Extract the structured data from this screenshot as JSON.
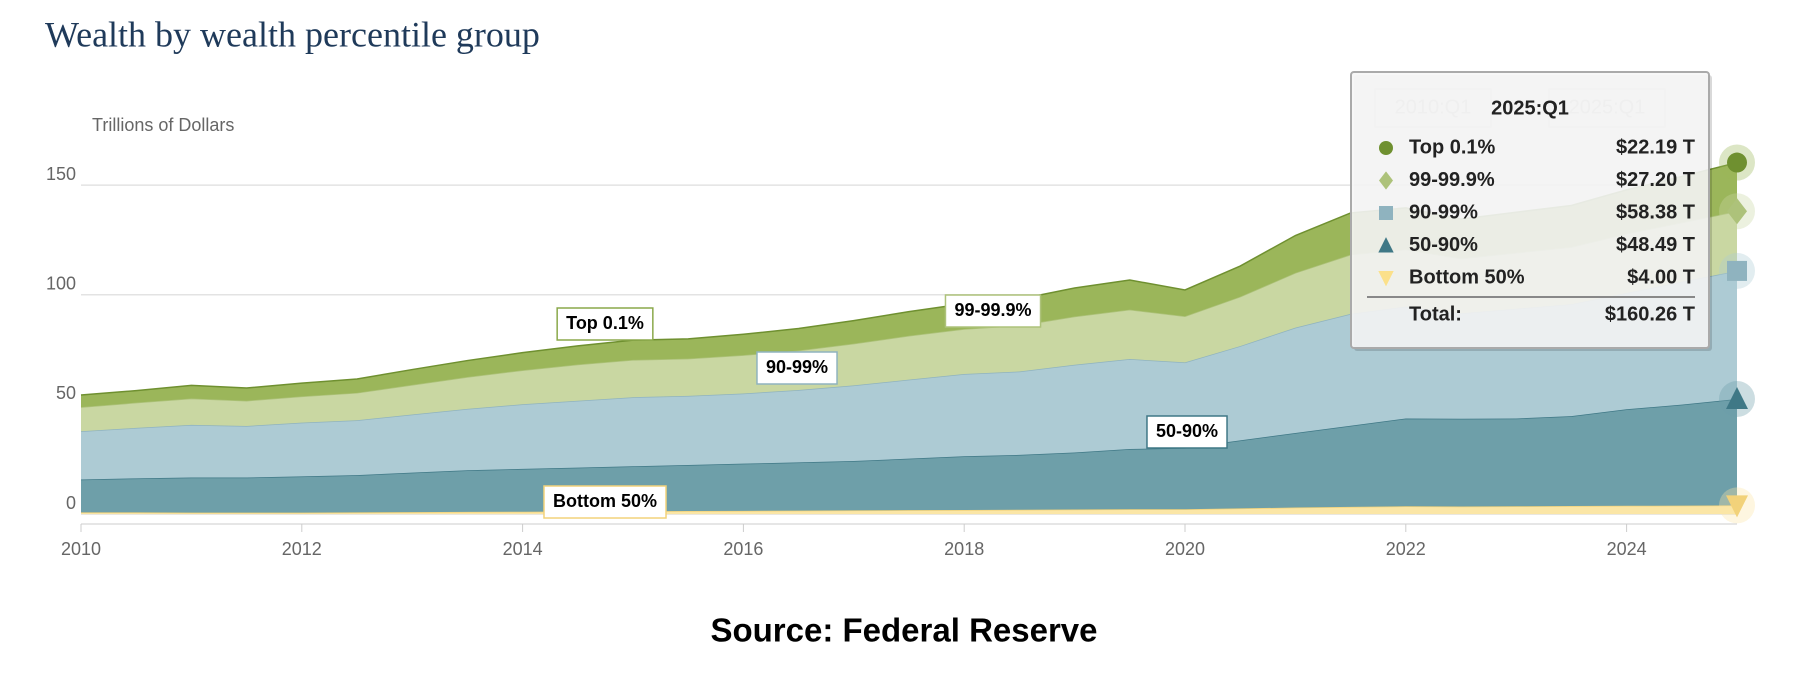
{
  "chart_data": {
    "type": "stacked_area",
    "title": "Wealth by wealth percentile group",
    "y_label": "Trillions of Dollars",
    "source": "Source: Federal Reserve",
    "range_from": "2010:Q1",
    "range_to": "2025:Q1",
    "x": [
      2010,
      2010.5,
      2011,
      2011.5,
      2012,
      2012.5,
      2013,
      2013.5,
      2014,
      2014.5,
      2015,
      2015.5,
      2016,
      2016.5,
      2017,
      2017.5,
      2018,
      2018.5,
      2019,
      2019.5,
      2020,
      2020.5,
      2021,
      2021.5,
      2022,
      2022.5,
      2023,
      2023.5,
      2024,
      2024.5,
      2025
    ],
    "series": [
      {
        "name": "Bottom 50%",
        "color": "#fbe6a6",
        "line": "#f2d27a",
        "values": [
          0.8,
          0.8,
          0.7,
          0.7,
          0.7,
          0.8,
          0.9,
          1.0,
          1.1,
          1.2,
          1.3,
          1.4,
          1.5,
          1.6,
          1.7,
          1.8,
          1.9,
          2.0,
          2.1,
          2.2,
          2.2,
          2.6,
          3.0,
          3.3,
          3.6,
          3.5,
          3.6,
          3.7,
          3.8,
          3.9,
          4.0
        ]
      },
      {
        "name": "50-90%",
        "color": "#6e9fa9",
        "line": "#3f7886",
        "values": [
          15,
          15.5,
          16,
          16,
          16.5,
          17,
          18,
          19,
          19.5,
          20,
          20.5,
          21,
          21.5,
          22,
          22.5,
          23.5,
          24.5,
          25,
          26,
          27.5,
          28,
          31,
          34,
          37,
          40,
          40,
          40,
          41,
          44,
          46,
          48.49
        ]
      },
      {
        "name": "90-99%",
        "color": "#adcbd4",
        "line": "#8fb3bf",
        "values": [
          22,
          23,
          24,
          23.5,
          24.5,
          25,
          26.5,
          28,
          29.5,
          30.5,
          31.5,
          31.5,
          32,
          33,
          34.5,
          36,
          37.5,
          38,
          40,
          41,
          39,
          43,
          48,
          51,
          51,
          48,
          50,
          51,
          53,
          56,
          58.38
        ]
      },
      {
        "name": "99-99.9%",
        "color": "#c9d7a2",
        "line": "#adc27a",
        "values": [
          11,
          11.5,
          12,
          11.5,
          12,
          12.5,
          13.5,
          14.5,
          15.5,
          16.5,
          17,
          17,
          17.5,
          18,
          19,
          20,
          20.5,
          21,
          22,
          22.5,
          21,
          22.5,
          25,
          27,
          26,
          25,
          25.5,
          26,
          27,
          27,
          27.2
        ]
      },
      {
        "name": "Top 0.1%",
        "color": "#9bb65a",
        "line": "#6f9030",
        "values": [
          5.5,
          5.5,
          6,
          5.8,
          6,
          6.3,
          7,
          7.5,
          8,
          8.5,
          9,
          9,
          9.5,
          10,
          10.5,
          11,
          11.5,
          12,
          13,
          13.5,
          12,
          14,
          17,
          19,
          19,
          18,
          18.5,
          19,
          20,
          21,
          22.19
        ]
      }
    ],
    "tooltip": {
      "period": "2025:Q1",
      "value_labels": [
        "$4.00 T",
        "$48.49 T",
        "$58.38 T",
        "$27.20 T",
        "$22.19 T"
      ],
      "total_label": "Total:",
      "total": "$160.26 T"
    },
    "xlim": [
      2010,
      2025
    ],
    "xticks": [
      2010,
      2012,
      2014,
      2016,
      2018,
      2020,
      2022,
      2024
    ],
    "ylim": [
      -4.5,
      171
    ],
    "yticks": [
      0,
      50,
      100,
      150
    ],
    "grid": true
  }
}
